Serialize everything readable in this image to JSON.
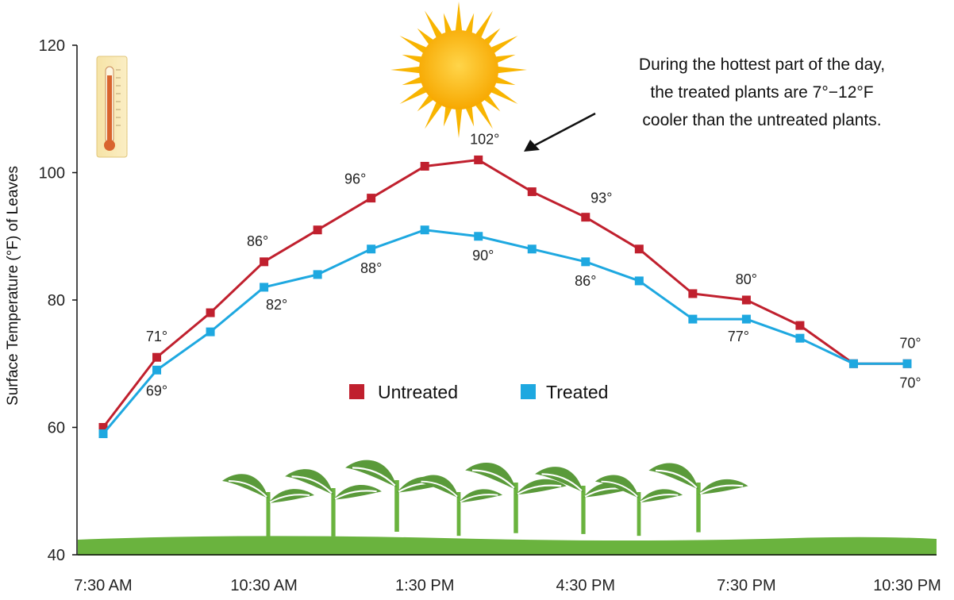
{
  "chart_data": {
    "type": "line",
    "title": "",
    "xlabel": "",
    "ylabel": "Surface Temperature (°F) of Leaves",
    "ylim": [
      40,
      120
    ],
    "y_ticks": [
      "40",
      "60",
      "80",
      "100",
      "120"
    ],
    "x_ticks": [
      "7:30 AM",
      "10:30 AM",
      "1:30 PM",
      "4:30 PM",
      "7:30 PM",
      "10:30 PM"
    ],
    "x_hours": [
      7.5,
      8.5,
      9.5,
      10.5,
      11.5,
      12.5,
      13.5,
      14.5,
      15.5,
      16.5,
      17.5,
      18.5,
      19.5,
      20.5,
      21.5,
      22.5
    ],
    "x_tick_hours": [
      7.5,
      10.5,
      13.5,
      16.5,
      19.5,
      22.5
    ],
    "grid": false,
    "legend_position": "center",
    "series": [
      {
        "name": "Untreated",
        "color": "#c0202e",
        "values": [
          60,
          71,
          78,
          86,
          91,
          96,
          101,
          102,
          97,
          93,
          88,
          81,
          80,
          76,
          70,
          70
        ],
        "labels": [
          {
            "i": 1,
            "text": "71°"
          },
          {
            "i": 3,
            "text": "86°"
          },
          {
            "i": 5,
            "text": "96°"
          },
          {
            "i": 7,
            "text": "102°"
          },
          {
            "i": 9,
            "text": "93°"
          },
          {
            "i": 12,
            "text": "80°"
          },
          {
            "i": 15,
            "text": "70°"
          }
        ]
      },
      {
        "name": "Treated",
        "color": "#1ea8e0",
        "values": [
          59,
          69,
          75,
          82,
          84,
          88,
          91,
          90,
          88,
          86,
          83,
          77,
          77,
          74,
          70,
          70
        ],
        "labels": [
          {
            "i": 1,
            "text": "69°"
          },
          {
            "i": 3,
            "text": "82°"
          },
          {
            "i": 5,
            "text": "88°"
          },
          {
            "i": 7,
            "text": "90°"
          },
          {
            "i": 9,
            "text": "86°"
          },
          {
            "i": 12,
            "text": "77°"
          },
          {
            "i": 15,
            "text": "70°"
          }
        ]
      }
    ],
    "annotation": {
      "lines": [
        "During the hottest part of the day,",
        "the treated plants are 7°−12°F",
        "cooler than the untreated plants."
      ]
    }
  },
  "decor": {
    "sun_icon": "sun-icon",
    "thermometer_icon": "thermometer-icon",
    "plants_icon": "plants-illustration",
    "ground_color": "#6ab33e",
    "leaf_color": "#5a9a3a"
  }
}
